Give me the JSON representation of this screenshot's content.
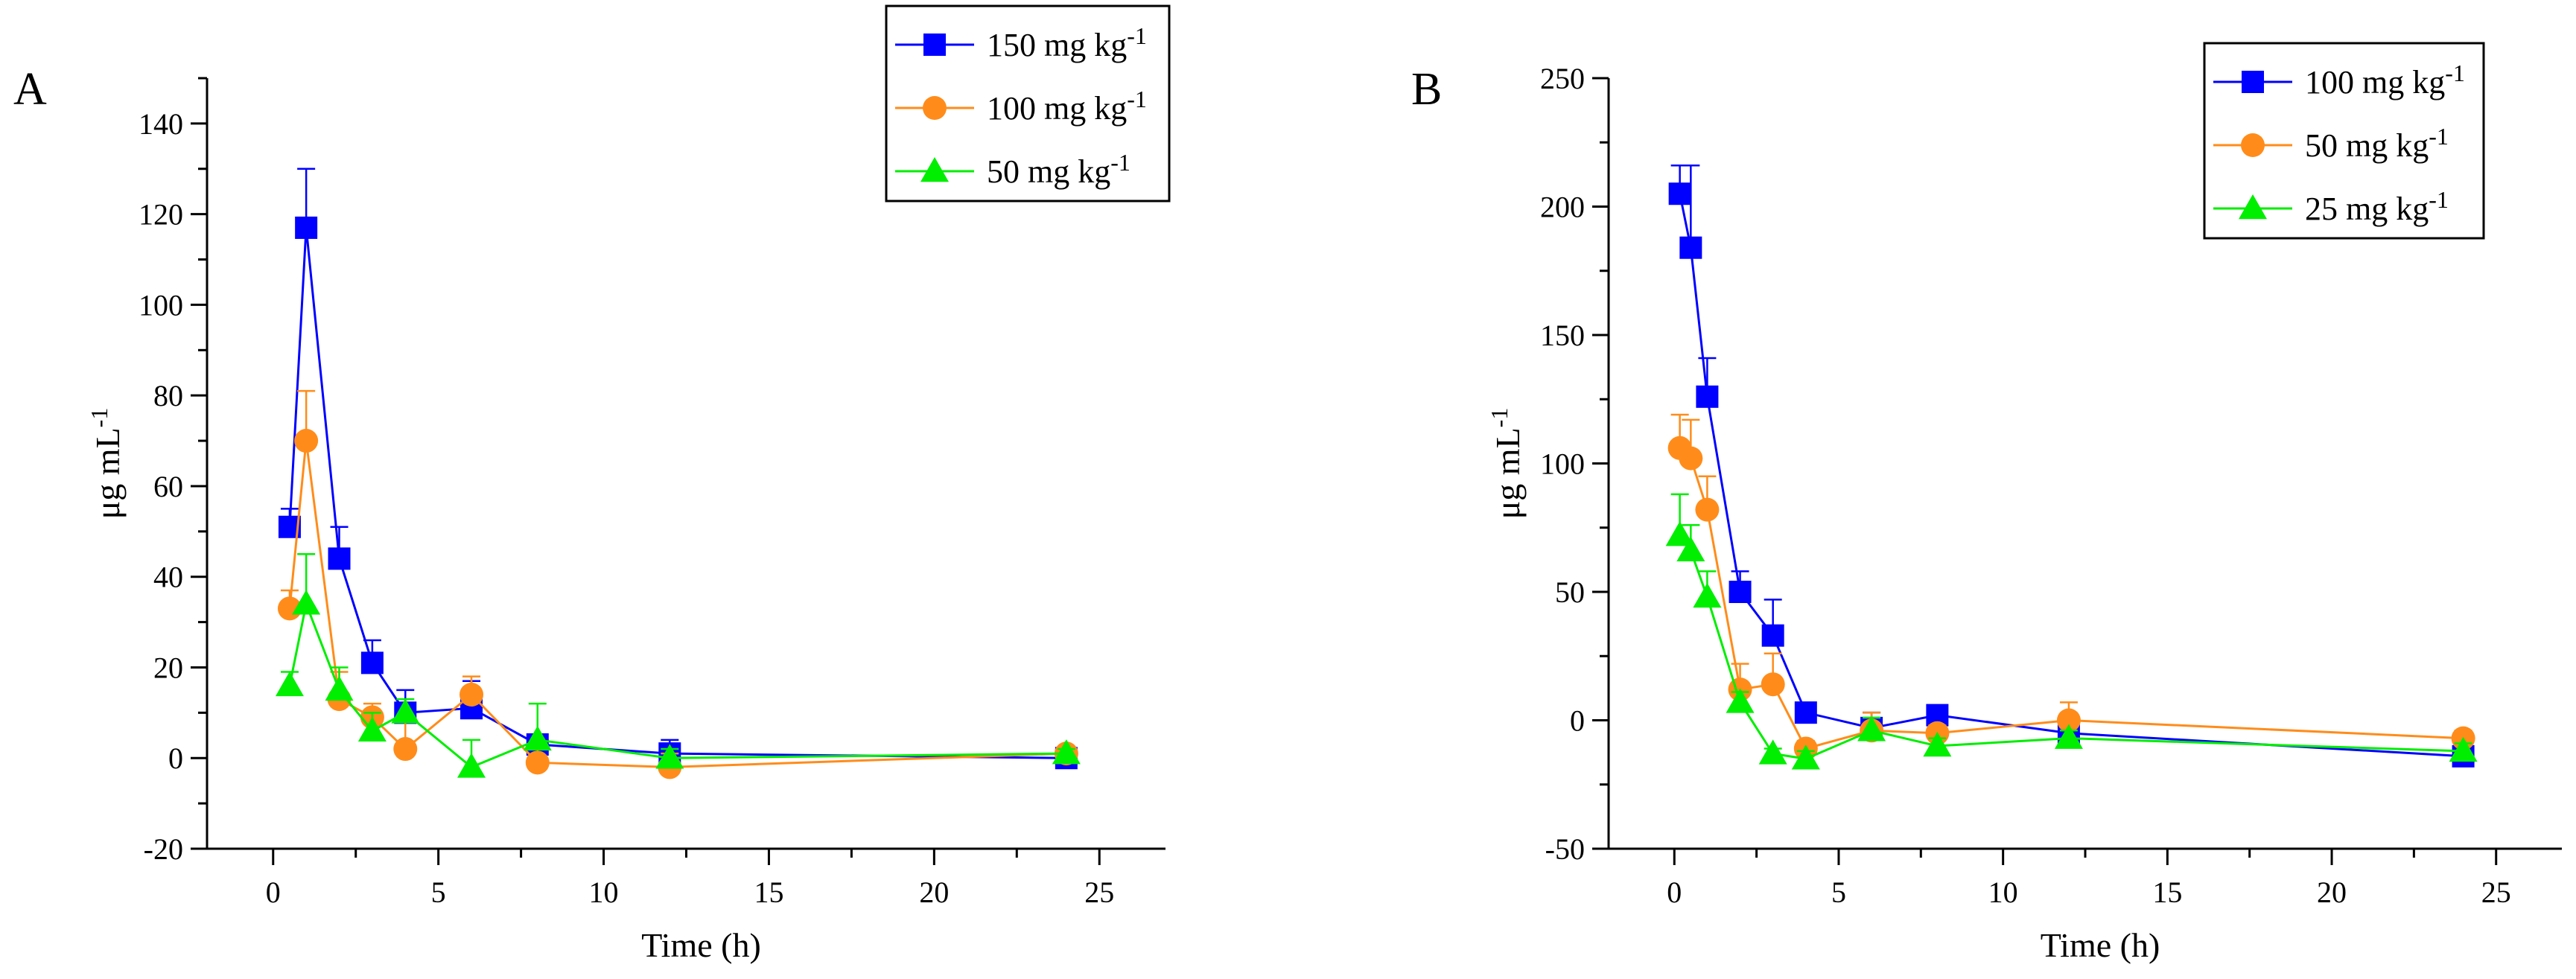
{
  "figure": {
    "background": "#ffffff"
  },
  "chart_data": [
    {
      "type": "line",
      "panel": "A",
      "title": "",
      "xlabel": "Time (h)",
      "ylabel": "μg mL",
      "ylabel_sup": "-1",
      "xlim": [
        -2,
        27
      ],
      "ylim": [
        -20,
        150
      ],
      "xticks": [
        0,
        5,
        10,
        15,
        20,
        25
      ],
      "yticks": [
        -20,
        0,
        20,
        40,
        60,
        80,
        100,
        120,
        140
      ],
      "grid": false,
      "legend_position": "top-right",
      "series": [
        {
          "name": "150 mg kg",
          "name_sup": "-1",
          "color": "#0000ff",
          "marker": "square",
          "x": [
            0.5,
            1,
            2,
            3,
            4,
            6,
            8,
            12,
            24
          ],
          "y": [
            51,
            117,
            44,
            21,
            10,
            11,
            3,
            1,
            0
          ],
          "err": [
            4,
            13,
            7,
            5,
            5,
            6,
            2,
            3,
            1
          ]
        },
        {
          "name": "100 mg kg",
          "name_sup": "-1",
          "color": "#ff8c1a",
          "marker": "circle",
          "x": [
            0.5,
            1,
            2,
            3,
            4,
            6,
            8,
            12,
            24
          ],
          "y": [
            33,
            70,
            13,
            9,
            2,
            14,
            -1,
            -2,
            1
          ],
          "err": [
            4,
            11,
            6,
            3,
            6,
            4,
            4,
            3,
            1
          ]
        },
        {
          "name": "50 mg kg",
          "name_sup": "-1",
          "color": "#00ee00",
          "marker": "triangle",
          "x": [
            0.5,
            1,
            2,
            3,
            4,
            6,
            8,
            12,
            24
          ],
          "y": [
            16,
            34,
            15,
            6,
            10,
            -2,
            4,
            0,
            1
          ],
          "err": [
            3,
            11,
            5,
            4,
            3,
            6,
            8,
            2,
            1
          ]
        }
      ]
    },
    {
      "type": "line",
      "panel": "B",
      "title": "",
      "xlabel": "Time (h)",
      "ylabel": "μg mL",
      "ylabel_sup": "-1",
      "xlim": [
        -2,
        27
      ],
      "ylim": [
        -50,
        250
      ],
      "xticks": [
        0,
        5,
        10,
        15,
        20,
        25
      ],
      "yticks": [
        -50,
        0,
        50,
        100,
        150,
        200,
        250
      ],
      "grid": false,
      "legend_position": "top-right",
      "series": [
        {
          "name": "100 mg kg",
          "name_sup": "-1",
          "color": "#0000ff",
          "marker": "square",
          "x": [
            0.167,
            0.5,
            1,
            2,
            3,
            4,
            6,
            8,
            12,
            24
          ],
          "y": [
            205,
            184,
            126,
            50,
            33,
            3,
            -3,
            2,
            -5,
            -14
          ],
          "err": [
            11,
            32,
            15,
            8,
            14,
            3,
            6,
            3,
            3,
            5
          ]
        },
        {
          "name": "50 mg kg",
          "name_sup": "-1",
          "color": "#ff8c1a",
          "marker": "circle",
          "x": [
            0.167,
            0.5,
            1,
            2,
            3,
            4,
            6,
            8,
            12,
            24
          ],
          "y": [
            106,
            102,
            82,
            12,
            14,
            -11,
            -4,
            -5,
            0,
            -7
          ],
          "err": [
            13,
            15,
            13,
            10,
            12,
            3,
            7,
            3,
            7,
            3
          ]
        },
        {
          "name": "25 mg kg",
          "name_sup": "-1",
          "color": "#00ee00",
          "marker": "triangle",
          "x": [
            0.167,
            0.5,
            1,
            2,
            3,
            4,
            6,
            8,
            12,
            24
          ],
          "y": [
            72,
            66,
            48,
            7,
            -13,
            -15,
            -4,
            -10,
            -7,
            -12
          ],
          "err": [
            16,
            10,
            10,
            4,
            2,
            3,
            5,
            3,
            3,
            3
          ]
        }
      ]
    }
  ]
}
